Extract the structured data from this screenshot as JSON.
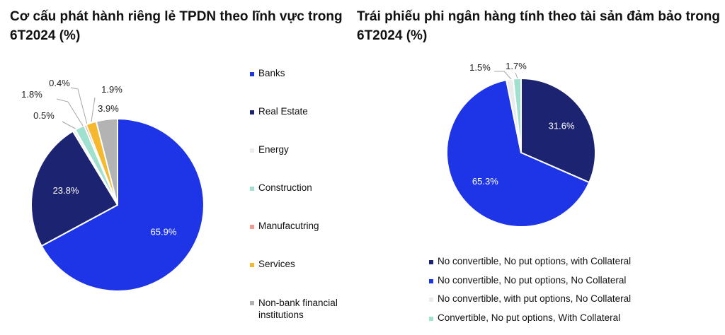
{
  "left_title": "Cơ cấu phát hành riêng lẻ TPDN theo lĩnh vực trong 6T2024 (%)",
  "right_title": "Trái phiếu phi ngân hàng tính theo tài sản đảm bảo trong 6T2024 (%)",
  "chart_data": [
    {
      "type": "pie",
      "title": "Cơ cấu phát hành riêng lẻ TPDN theo lĩnh vực trong 6T2024 (%)",
      "legend_position": "right",
      "slices": [
        {
          "name": "Banks",
          "value": 65.9,
          "label": "65.9%",
          "color": "#1d35e6"
        },
        {
          "name": "Real Estate",
          "value": 23.8,
          "label": "23.8%",
          "color": "#1c2370"
        },
        {
          "name": "Energy",
          "value": 0.5,
          "label": "0.5%",
          "color": "#ececec"
        },
        {
          "name": "Construction",
          "value": 1.8,
          "label": "1.8%",
          "color": "#9fe0cf"
        },
        {
          "name": "Manufacutring",
          "value": 0.4,
          "label": "0.4%",
          "color": "#f59a8e"
        },
        {
          "name": "Services",
          "value": 1.9,
          "label": "1.9%",
          "color": "#f5b82e"
        },
        {
          "name": "Non-bank financial institutions",
          "value": 3.9,
          "label": "3.9%",
          "color": "#b3b3b3"
        }
      ]
    },
    {
      "type": "pie",
      "title": "Trái phiếu phi ngân hàng tính theo tài sản đảm bảo trong 6T2024 (%)",
      "legend_position": "bottom",
      "slices": [
        {
          "name": "No convertible, No put options, with Collateral",
          "value": 31.6,
          "label": "31.6%",
          "color": "#1c2370"
        },
        {
          "name": "No convertible, No put options, No Collateral",
          "value": 65.3,
          "label": "65.3%",
          "color": "#1d35e6"
        },
        {
          "name": "No convertible, with put options, No Collateral",
          "value": 1.5,
          "label": "1.5%",
          "color": "#ececec"
        },
        {
          "name": "Convertible, No put options, With Collateral",
          "value": 1.7,
          "label": "1.7%",
          "color": "#9fe0cf"
        }
      ]
    }
  ]
}
